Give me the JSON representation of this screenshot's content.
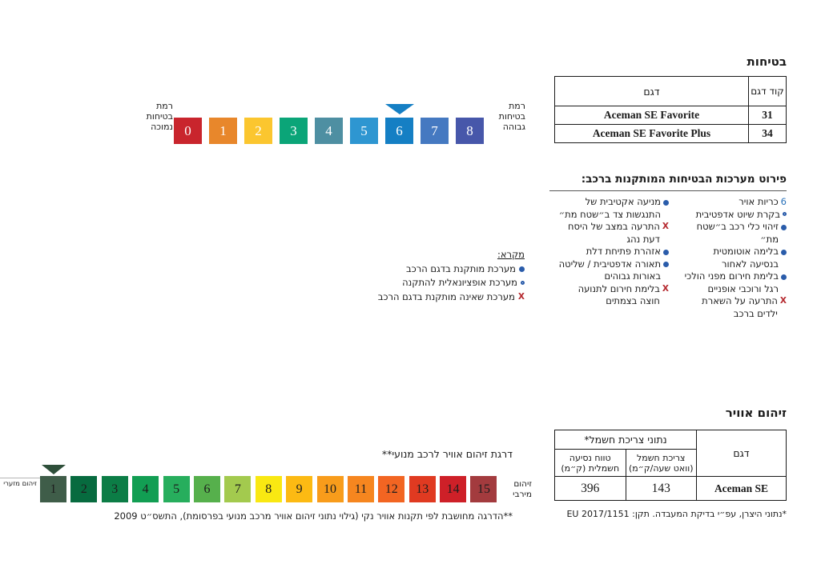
{
  "safety": {
    "title": "בטיחות",
    "table": {
      "code_header": "קוד דגם",
      "model_header": "דגם",
      "rows": [
        {
          "code": "31",
          "model": "Aceman SE Favorite"
        },
        {
          "code": "34",
          "model": "Aceman SE Favorite Plus"
        }
      ]
    },
    "scale": {
      "low_label": "רמת בטיחות נמוכה",
      "high_label": "רמת בטיחות גבוהה",
      "arrow_at": "6",
      "arrow_color": "#157fc4",
      "levels": [
        {
          "value": "0",
          "color": "#c9252d"
        },
        {
          "value": "1",
          "color": "#e8872b"
        },
        {
          "value": "2",
          "color": "#fbc62f"
        },
        {
          "value": "3",
          "color": "#0ba578"
        },
        {
          "value": "4",
          "color": "#4e8fa2"
        },
        {
          "value": "5",
          "color": "#2e96d1"
        },
        {
          "value": "6",
          "color": "#157fc4"
        },
        {
          "value": "7",
          "color": "#4579c1"
        },
        {
          "value": "8",
          "color": "#4757aa"
        }
      ]
    },
    "systems": {
      "heading": "פירוט מערכות הבטיחות המותקנות ברכב:",
      "right_column": [
        {
          "marker": "count",
          "count": "6",
          "text": "כריות אויר"
        },
        {
          "marker": "optional",
          "text": "בקרת שיוט אדפטיבית"
        },
        {
          "marker": "installed",
          "text": "זיהוי כלי רכב ב״שטח מת״"
        },
        {
          "marker": "installed",
          "text": "בלימה אוטומטית בנסיעה לאחור"
        },
        {
          "marker": "installed",
          "text": "בלימת חירום מפני הולכי רגל ורוכבי אופניים"
        },
        {
          "marker": "x",
          "text": "התרעה על השארת ילדים ברכב"
        }
      ],
      "left_column": [
        {
          "marker": "installed",
          "text": "מניעה אקטיבית של התנגשות צד ב״שטח מת״"
        },
        {
          "marker": "x",
          "text": "התרעה במצב של היסח דעת נהג"
        },
        {
          "marker": "installed",
          "text": "אזהרת פתיחת דלת"
        },
        {
          "marker": "installed",
          "text": "תאורה אדפטיבית / שליטה באורות גבוהים"
        },
        {
          "marker": "x",
          "text": "בלימת חירום לתנועה חוצה בצמתים"
        }
      ]
    },
    "legend": {
      "title": "מקרא:",
      "items": [
        {
          "marker": "installed",
          "text": "מערכת מותקנת בדגם הרכב"
        },
        {
          "marker": "optional",
          "text": "מערכת אופציונאלית להתקנה"
        },
        {
          "marker": "x",
          "text": "מערכת שאינה מותקנת בדגם הרכב"
        }
      ]
    }
  },
  "pollution": {
    "title": "זיהום אוויר",
    "table": {
      "group_header": "נתוני צריכת חשמל*",
      "model_header": "דגם",
      "range_header": "טווח נסיעה חשמלית (ק״מ)",
      "consumption_header": "צריכת חשמל (וואט שעה/ק״מ)",
      "row": {
        "range": "396",
        "consumption": "143",
        "model": "Aceman SE"
      }
    },
    "table_footnote": "*נתוני היצרן, עפ״י בדיקת המעבדה. תקן: EU 2017/1151",
    "scale_title": "דרגת זיהום אוויר לרכב מנועי**",
    "scale": {
      "min_label": "זיהום מזערי",
      "max_label": "זיהום מירבי",
      "arrow_at": "1",
      "arrow_color": "#2e4f3a",
      "levels": [
        {
          "value": "1",
          "color": "#3f5d49"
        },
        {
          "value": "2",
          "color": "#076b3f"
        },
        {
          "value": "3",
          "color": "#0c7d46"
        },
        {
          "value": "4",
          "color": "#129e53"
        },
        {
          "value": "5",
          "color": "#27ae5d"
        },
        {
          "value": "6",
          "color": "#56b04c"
        },
        {
          "value": "7",
          "color": "#a3ca4e"
        },
        {
          "value": "8",
          "color": "#f9e812"
        },
        {
          "value": "9",
          "color": "#fcba13"
        },
        {
          "value": "10",
          "color": "#f89c1b"
        },
        {
          "value": "11",
          "color": "#f6861f"
        },
        {
          "value": "12",
          "color": "#f26522"
        },
        {
          "value": "13",
          "color": "#e03a21"
        },
        {
          "value": "14",
          "color": "#ce2028"
        },
        {
          "value": "15",
          "color": "#a33b3e"
        }
      ]
    },
    "bottom_footnote": "**הדרגה מחושבת לפי תקנות אוויר נקי (גילוי נתוני זיהום אוויר מרכב מנועי בפרסומת), התשס״ט 2009"
  },
  "colors": {
    "installed_marker": "#2a5caa",
    "optional_marker": "#2a5caa",
    "x_marker": "#b5282e",
    "airbag_count": "#2a72ba"
  }
}
